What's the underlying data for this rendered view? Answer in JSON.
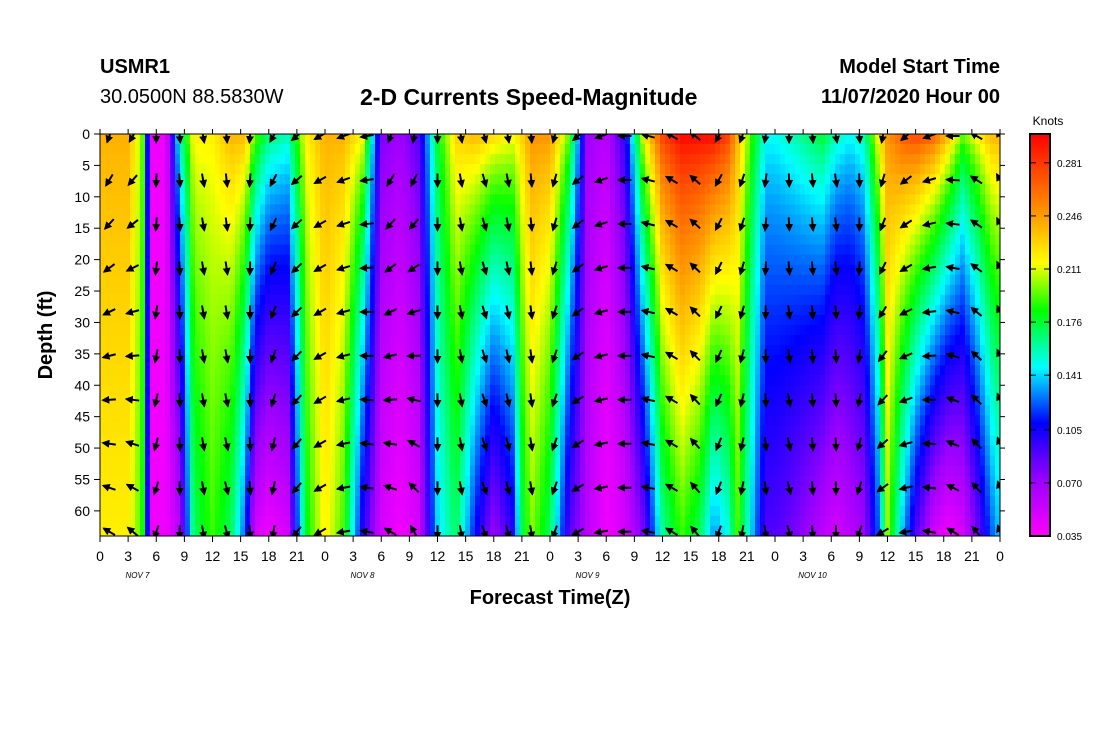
{
  "header": {
    "station": "USMR1",
    "coordinates": "30.0500N 88.5830W",
    "title": "2-D Currents Speed-Magnitude",
    "model_start_label": "Model Start Time",
    "model_start_value": "11/07/2020 Hour 00"
  },
  "chart_data": {
    "type": "heatmap",
    "title": "2-D Currents Speed-Magnitude",
    "xlabel": "Forecast Time(Z)",
    "ylabel": "Depth (ft)",
    "x_ticks": [
      "0",
      "3",
      "6",
      "9",
      "12",
      "15",
      "18",
      "21",
      "0",
      "3",
      "6",
      "9",
      "12",
      "15",
      "18",
      "21",
      "0",
      "3",
      "6",
      "9",
      "12",
      "15",
      "18",
      "21",
      "0",
      "3",
      "6",
      "9",
      "12",
      "15",
      "18",
      "21",
      "0"
    ],
    "day_labels": [
      {
        "label": "NOV 7",
        "hour": 4
      },
      {
        "label": "NOV 8",
        "hour": 28
      },
      {
        "label": "NOV 9",
        "hour": 52
      },
      {
        "label": "NOV 10",
        "hour": 76
      }
    ],
    "xlim_hours": [
      0,
      96
    ],
    "y_ticks": [
      "0",
      "5",
      "10",
      "15",
      "20",
      "25",
      "30",
      "35",
      "40",
      "45",
      "50",
      "55",
      "60"
    ],
    "ylim_ft": [
      0,
      64
    ],
    "colorbar": {
      "unit": "Knots",
      "ticks": [
        "0.281",
        "0.246",
        "0.211",
        "0.176",
        "0.141",
        "0.105",
        "0.070",
        "0.035"
      ],
      "range": [
        0.035,
        0.3
      ]
    },
    "speed_profile": {
      "hours": [
        0,
        1.5,
        3,
        4.5,
        5.5,
        7,
        8.5,
        10,
        12,
        14,
        15.5,
        16.5,
        18,
        20,
        22,
        24,
        26,
        28,
        30,
        32,
        34,
        36,
        38,
        40,
        42,
        44,
        45,
        46,
        48,
        50,
        52,
        54,
        56,
        58,
        60,
        62,
        64,
        65.5,
        67,
        68,
        69.5,
        71,
        72,
        74,
        75.5,
        77,
        78.5,
        80,
        81.5,
        83,
        84,
        85.5,
        87,
        89,
        90.5,
        92,
        93.5,
        95,
        96
      ],
      "surface": [
        0.24,
        0.24,
        0.24,
        0.2,
        0.04,
        0.04,
        0.16,
        0.22,
        0.22,
        0.24,
        0.24,
        0.2,
        0.17,
        0.16,
        0.22,
        0.24,
        0.24,
        0.22,
        0.08,
        0.07,
        0.09,
        0.18,
        0.23,
        0.24,
        0.23,
        0.22,
        0.23,
        0.25,
        0.25,
        0.2,
        0.07,
        0.06,
        0.1,
        0.22,
        0.28,
        0.3,
        0.3,
        0.3,
        0.28,
        0.24,
        0.19,
        0.15,
        0.15,
        0.16,
        0.17,
        0.18,
        0.16,
        0.15,
        0.16,
        0.22,
        0.25,
        0.27,
        0.28,
        0.27,
        0.24,
        0.2,
        0.22,
        0.24,
        0.24
      ],
      "deep": [
        0.22,
        0.22,
        0.22,
        0.19,
        0.04,
        0.04,
        0.06,
        0.17,
        0.19,
        0.17,
        0.12,
        0.05,
        0.04,
        0.05,
        0.18,
        0.22,
        0.19,
        0.1,
        0.05,
        0.04,
        0.05,
        0.14,
        0.17,
        0.11,
        0.07,
        0.1,
        0.17,
        0.2,
        0.17,
        0.09,
        0.06,
        0.04,
        0.05,
        0.08,
        0.16,
        0.19,
        0.17,
        0.13,
        0.15,
        0.19,
        0.14,
        0.09,
        0.09,
        0.08,
        0.07,
        0.06,
        0.05,
        0.06,
        0.07,
        0.12,
        0.2,
        0.14,
        0.09,
        0.05,
        0.04,
        0.05,
        0.08,
        0.12,
        0.14
      ]
    },
    "vector_field": {
      "hours": [
        1,
        3.5,
        6,
        8.5,
        11,
        13.5,
        16,
        18.5,
        21,
        23.5,
        26,
        28.5,
        31,
        33.5,
        36,
        38.5,
        41,
        43.5,
        46,
        48.5,
        51,
        53.5,
        56,
        58.5,
        61,
        63.5,
        66,
        68.5,
        71,
        73.5,
        76,
        78.5,
        81,
        83.5,
        86,
        88.5,
        91,
        93.5,
        96
      ],
      "depths_ft": [
        0,
        7,
        14,
        21,
        28,
        35,
        42,
        49,
        56,
        63
      ],
      "direction_deg_surface": [
        200,
        210,
        180,
        175,
        170,
        175,
        185,
        210,
        230,
        240,
        250,
        260,
        200,
        190,
        180,
        170,
        165,
        170,
        175,
        195,
        230,
        250,
        270,
        285,
        300,
        310,
        210,
        200,
        190,
        180,
        175,
        170,
        175,
        190,
        230,
        250,
        270,
        300,
        330
      ],
      "direction_deg_deep": [
        300,
        310,
        200,
        180,
        170,
        165,
        175,
        190,
        220,
        240,
        260,
        280,
        300,
        330,
        180,
        170,
        160,
        165,
        170,
        200,
        240,
        260,
        270,
        280,
        300,
        320,
        200,
        190,
        170,
        165,
        175,
        180,
        200,
        240,
        260,
        280,
        300,
        320,
        340
      ]
    }
  }
}
